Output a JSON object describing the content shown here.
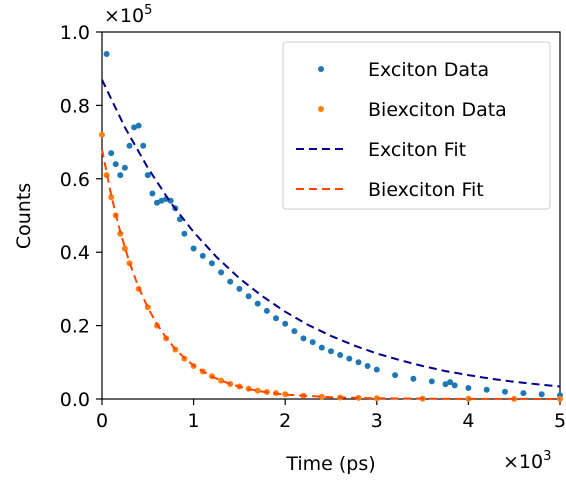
{
  "chart_data": {
    "type": "scatter",
    "xlabel": "Time (ps)",
    "ylabel": "Counts",
    "x_multiplier_label": "×10",
    "x_multiplier_exp": "3",
    "y_multiplier_label": "×10",
    "y_multiplier_exp": "5",
    "xlim": [
      0,
      5
    ],
    "ylim": [
      0,
      1.0
    ],
    "x_ticks": [
      0,
      1,
      2,
      3,
      4,
      5
    ],
    "x_tick_labels": [
      "0",
      "1",
      "2",
      "3",
      "4",
      "5"
    ],
    "y_ticks": [
      0.0,
      0.2,
      0.4,
      0.6,
      0.8,
      1.0
    ],
    "y_tick_labels": [
      "0.0",
      "0.2",
      "0.4",
      "0.6",
      "0.8",
      "1.0"
    ],
    "grid": false,
    "legend_position": "top-right",
    "series": [
      {
        "name": "Exciton Data",
        "kind": "points",
        "color": "#1f77b4",
        "x": [
          0.05,
          0.1,
          0.15,
          0.2,
          0.25,
          0.3,
          0.35,
          0.4,
          0.45,
          0.5,
          0.55,
          0.6,
          0.65,
          0.7,
          0.75,
          0.8,
          0.85,
          0.9,
          1.0,
          1.1,
          1.2,
          1.3,
          1.4,
          1.5,
          1.6,
          1.7,
          1.8,
          1.9,
          2.0,
          2.1,
          2.2,
          2.3,
          2.4,
          2.5,
          2.6,
          2.7,
          2.8,
          2.9,
          3.0,
          3.2,
          3.4,
          3.6,
          3.75,
          3.8,
          3.85,
          4.0,
          4.2,
          4.4,
          4.6,
          4.8,
          5.0
        ],
        "y": [
          0.94,
          0.67,
          0.64,
          0.61,
          0.63,
          0.69,
          0.74,
          0.745,
          0.69,
          0.61,
          0.56,
          0.535,
          0.54,
          0.545,
          0.54,
          0.52,
          0.49,
          0.45,
          0.41,
          0.39,
          0.37,
          0.345,
          0.32,
          0.3,
          0.28,
          0.26,
          0.24,
          0.22,
          0.205,
          0.185,
          0.165,
          0.155,
          0.14,
          0.13,
          0.12,
          0.11,
          0.1,
          0.09,
          0.08,
          0.065,
          0.055,
          0.048,
          0.04,
          0.046,
          0.037,
          0.03,
          0.025,
          0.02,
          0.016,
          0.013,
          0.01
        ]
      },
      {
        "name": "Biexciton Data",
        "kind": "points",
        "color": "#ff7f0e",
        "x": [
          0.0,
          0.05,
          0.1,
          0.15,
          0.2,
          0.25,
          0.3,
          0.4,
          0.5,
          0.6,
          0.7,
          0.8,
          0.9,
          1.0,
          1.1,
          1.2,
          1.3,
          1.4,
          1.5,
          1.6,
          1.7,
          1.8,
          1.9,
          2.0,
          2.2,
          2.4,
          2.6,
          2.8,
          3.0,
          3.5,
          4.0,
          4.5,
          5.0
        ],
        "y": [
          0.72,
          0.61,
          0.55,
          0.5,
          0.45,
          0.41,
          0.37,
          0.3,
          0.25,
          0.2,
          0.165,
          0.135,
          0.11,
          0.09,
          0.075,
          0.062,
          0.05,
          0.041,
          0.034,
          0.028,
          0.023,
          0.019,
          0.016,
          0.013,
          0.009,
          0.006,
          0.004,
          0.003,
          0.002,
          0.001,
          0.0005,
          0.0003,
          0.0002
        ]
      },
      {
        "name": "Exciton Fit",
        "kind": "line",
        "color": "#00008b",
        "dash": "8,5",
        "x": [
          0.0,
          0.25,
          0.5,
          0.75,
          1.0,
          1.25,
          1.5,
          1.75,
          2.0,
          2.25,
          2.5,
          2.75,
          3.0,
          3.25,
          3.5,
          3.75,
          4.0,
          4.25,
          4.5,
          4.75,
          5.0
        ],
        "y": [
          0.87,
          0.74,
          0.63,
          0.535,
          0.455,
          0.387,
          0.329,
          0.28,
          0.238,
          0.202,
          0.172,
          0.146,
          0.124,
          0.106,
          0.09,
          0.076,
          0.065,
          0.055,
          0.047,
          0.04,
          0.034
        ]
      },
      {
        "name": "Biexciton Fit",
        "kind": "line",
        "color": "#ff4500",
        "dash": "8,5",
        "x": [
          0.0,
          0.1,
          0.2,
          0.3,
          0.4,
          0.5,
          0.6,
          0.7,
          0.8,
          0.9,
          1.0,
          1.2,
          1.4,
          1.6,
          1.8,
          2.0,
          2.5,
          3.0,
          3.5,
          4.0,
          4.5,
          5.0
        ],
        "y": [
          0.68,
          0.555,
          0.455,
          0.372,
          0.304,
          0.249,
          0.204,
          0.167,
          0.136,
          0.112,
          0.091,
          0.061,
          0.041,
          0.027,
          0.018,
          0.012,
          0.005,
          0.002,
          0.001,
          0.0004,
          0.0002,
          0.0001
        ]
      }
    ]
  }
}
